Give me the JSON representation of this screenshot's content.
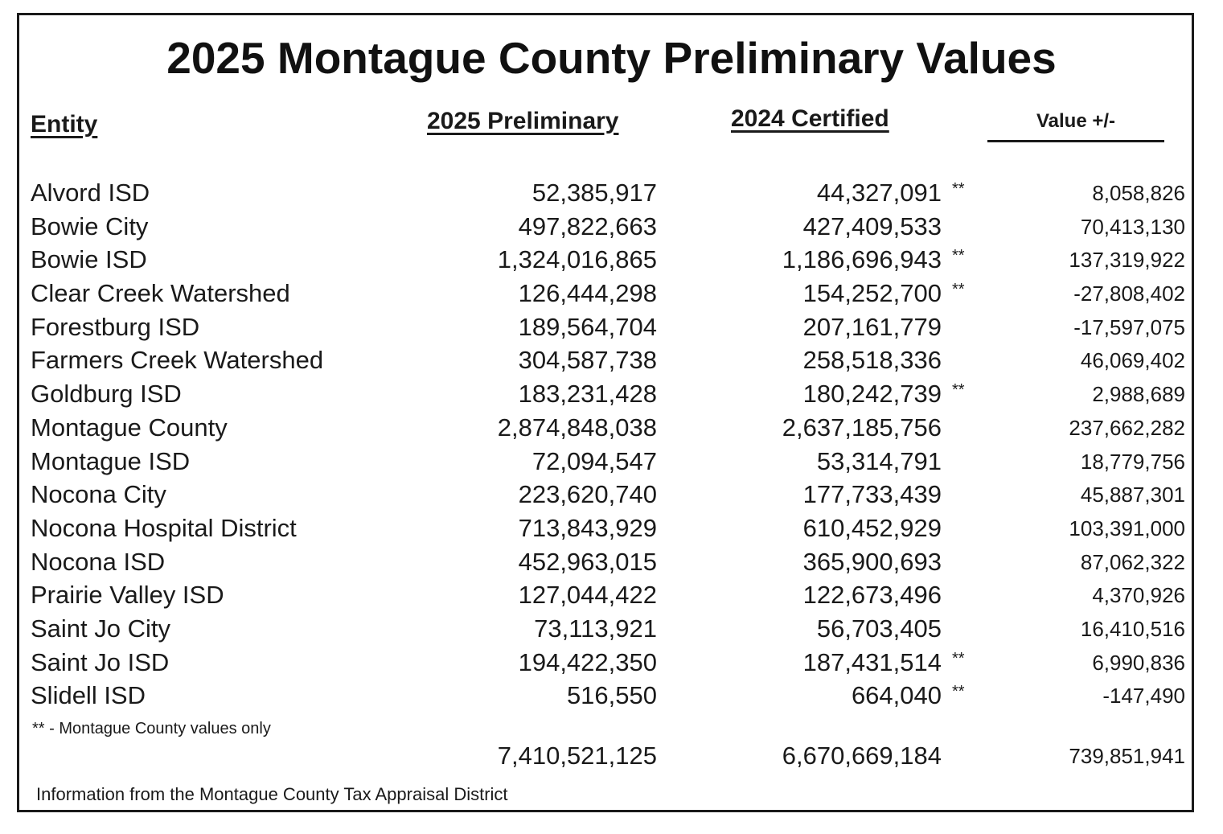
{
  "title": "2025 Montague County Preliminary Values",
  "headers": {
    "entity": "Entity",
    "prelim": "2025 Preliminary",
    "cert": "2024 Certified",
    "value": "Value +/-"
  },
  "rows": [
    {
      "entity": "Alvord ISD",
      "prelim": "52,385,917",
      "cert": "44,327,091",
      "mark": "**",
      "diff": "8,058,826"
    },
    {
      "entity": "Bowie City",
      "prelim": "497,822,663",
      "cert": "427,409,533",
      "mark": "",
      "diff": "70,413,130"
    },
    {
      "entity": "Bowie ISD",
      "prelim": "1,324,016,865",
      "cert": "1,186,696,943",
      "mark": "**",
      "diff": "137,319,922"
    },
    {
      "entity": "Clear Creek Watershed",
      "prelim": "126,444,298",
      "cert": "154,252,700",
      "mark": "**",
      "diff": "-27,808,402"
    },
    {
      "entity": "Forestburg ISD",
      "prelim": "189,564,704",
      "cert": "207,161,779",
      "mark": "",
      "diff": "-17,597,075"
    },
    {
      "entity": "Farmers Creek Watershed",
      "prelim": "304,587,738",
      "cert": "258,518,336",
      "mark": "",
      "diff": "46,069,402"
    },
    {
      "entity": "Goldburg ISD",
      "prelim": "183,231,428",
      "cert": "180,242,739",
      "mark": "**",
      "diff": "2,988,689"
    },
    {
      "entity": "Montague County",
      "prelim": "2,874,848,038",
      "cert": "2,637,185,756",
      "mark": "",
      "diff": "237,662,282"
    },
    {
      "entity": "Montague ISD",
      "prelim": "72,094,547",
      "cert": "53,314,791",
      "mark": "",
      "diff": "18,779,756"
    },
    {
      "entity": "Nocona City",
      "prelim": "223,620,740",
      "cert": "177,733,439",
      "mark": "",
      "diff": "45,887,301"
    },
    {
      "entity": "Nocona Hospital District",
      "prelim": "713,843,929",
      "cert": "610,452,929",
      "mark": "",
      "diff": "103,391,000"
    },
    {
      "entity": "Nocona ISD",
      "prelim": "452,963,015",
      "cert": "365,900,693",
      "mark": "",
      "diff": "87,062,322"
    },
    {
      "entity": "Prairie Valley ISD",
      "prelim": "127,044,422",
      "cert": "122,673,496",
      "mark": "",
      "diff": "4,370,926"
    },
    {
      "entity": "Saint Jo City",
      "prelim": "73,113,921",
      "cert": "56,703,405",
      "mark": "",
      "diff": "16,410,516"
    },
    {
      "entity": "Saint Jo ISD",
      "prelim": "194,422,350",
      "cert": "187,431,514",
      "mark": "**",
      "diff": "6,990,836"
    },
    {
      "entity": "Slidell ISD",
      "prelim": "516,550",
      "cert": "664,040",
      "mark": "**",
      "diff": "-147,490"
    }
  ],
  "footnote": "** - Montague County values only",
  "totals": {
    "prelim": "7,410,521,125",
    "cert": "6,670,669,184",
    "diff": "739,851,941"
  },
  "source": "Information from the Montague County Tax Appraisal District"
}
